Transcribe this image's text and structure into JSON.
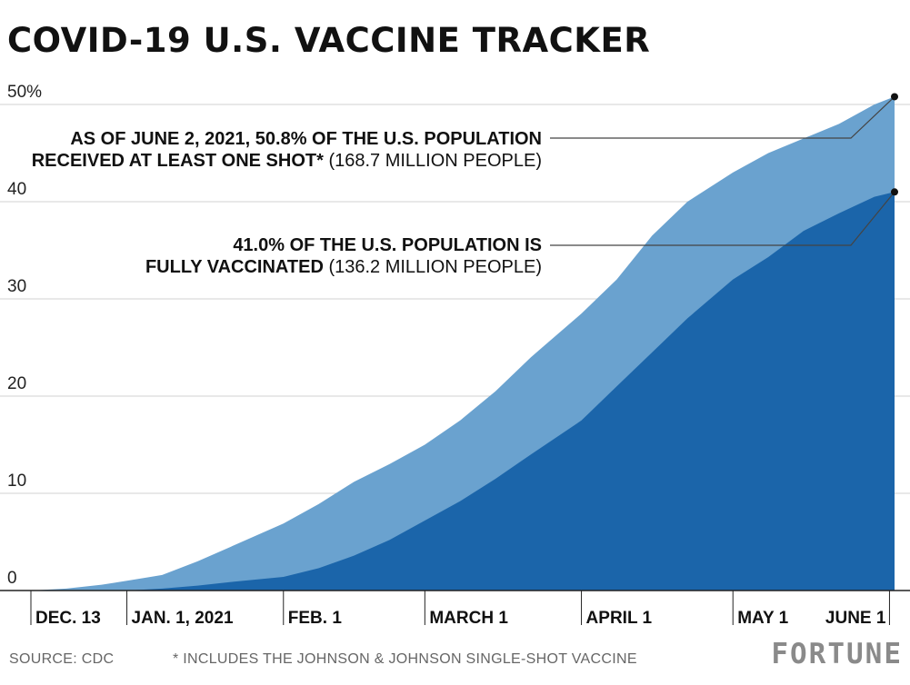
{
  "title": "COVID-19 U.S. VACCINE TRACKER",
  "annotations": {
    "one_shot": {
      "bold_line1": "AS OF JUNE 2, 2021, 50.8% OF THE U.S. POPULATION",
      "bold_line2": "RECEIVED AT LEAST ONE SHOT*",
      "light": "(168.7 MILLION PEOPLE)"
    },
    "full": {
      "bold_line1": "41.0% OF THE U.S. POPULATION IS",
      "bold_line2": "FULLY VACCINATED",
      "light": "(136.2 MILLION PEOPLE)"
    }
  },
  "footer": {
    "source": "SOURCE: CDC",
    "note": "* INCLUDES THE JOHNSON & JOHNSON SINGLE-SHOT VACCINE",
    "brand": "FORTUNE"
  },
  "colors": {
    "at_least_one": "#6aa2cf",
    "fully": "#1b65aa",
    "grid": "#d0d0d0",
    "axis": "#222222",
    "leader": "#444444"
  },
  "chart_data": {
    "type": "area",
    "title": "COVID-19 U.S. VACCINE TRACKER",
    "xlabel": "",
    "ylabel": "",
    "x_range": [
      "2020-12-13",
      "2021-06-02"
    ],
    "ylim": [
      0,
      50
    ],
    "y_ticks": [
      0,
      10,
      20,
      30,
      40,
      50
    ],
    "y_tick_labels": [
      "0",
      "10",
      "20",
      "30",
      "40",
      "50%"
    ],
    "x_ticks": [
      {
        "date": "2020-12-13",
        "label": "DEC. 13"
      },
      {
        "date": "2021-01-01",
        "label": "JAN. 1, 2021"
      },
      {
        "date": "2021-02-01",
        "label": "FEB. 1"
      },
      {
        "date": "2021-03-01",
        "label": "MARCH 1"
      },
      {
        "date": "2021-04-01",
        "label": "APRIL 1"
      },
      {
        "date": "2021-05-01",
        "label": "MAY 1"
      },
      {
        "date": "2021-06-01",
        "label": "JUNE 1"
      }
    ],
    "grid": true,
    "series": [
      {
        "name": "At least one shot",
        "points": [
          [
            "2020-12-13",
            0
          ],
          [
            "2020-12-20",
            0.2
          ],
          [
            "2020-12-27",
            0.6
          ],
          [
            "2021-01-01",
            1.0
          ],
          [
            "2021-01-08",
            1.6
          ],
          [
            "2021-01-15",
            3.0
          ],
          [
            "2021-01-22",
            4.6
          ],
          [
            "2021-02-01",
            6.9
          ],
          [
            "2021-02-08",
            8.9
          ],
          [
            "2021-02-15",
            11.2
          ],
          [
            "2021-02-22",
            13.0
          ],
          [
            "2021-03-01",
            15.0
          ],
          [
            "2021-03-08",
            17.5
          ],
          [
            "2021-03-15",
            20.5
          ],
          [
            "2021-03-22",
            24.0
          ],
          [
            "2021-04-01",
            28.5
          ],
          [
            "2021-04-08",
            32.0
          ],
          [
            "2021-04-15",
            36.5
          ],
          [
            "2021-04-22",
            40.0
          ],
          [
            "2021-05-01",
            43.0
          ],
          [
            "2021-05-08",
            45.0
          ],
          [
            "2021-05-15",
            46.5
          ],
          [
            "2021-05-22",
            48.0
          ],
          [
            "2021-05-29",
            50.0
          ],
          [
            "2021-06-02",
            50.8
          ]
        ]
      },
      {
        "name": "Fully vaccinated",
        "points": [
          [
            "2020-12-13",
            0
          ],
          [
            "2021-01-01",
            0
          ],
          [
            "2021-01-08",
            0.2
          ],
          [
            "2021-01-15",
            0.5
          ],
          [
            "2021-01-22",
            0.9
          ],
          [
            "2021-02-01",
            1.4
          ],
          [
            "2021-02-08",
            2.3
          ],
          [
            "2021-02-15",
            3.6
          ],
          [
            "2021-02-22",
            5.2
          ],
          [
            "2021-03-01",
            7.2
          ],
          [
            "2021-03-08",
            9.2
          ],
          [
            "2021-03-15",
            11.5
          ],
          [
            "2021-03-22",
            14.0
          ],
          [
            "2021-04-01",
            17.5
          ],
          [
            "2021-04-08",
            21.0
          ],
          [
            "2021-04-15",
            24.5
          ],
          [
            "2021-04-22",
            28.0
          ],
          [
            "2021-05-01",
            32.0
          ],
          [
            "2021-05-08",
            34.3
          ],
          [
            "2021-05-15",
            37.0
          ],
          [
            "2021-05-22",
            38.8
          ],
          [
            "2021-05-29",
            40.5
          ],
          [
            "2021-06-02",
            41.0
          ]
        ]
      }
    ]
  }
}
